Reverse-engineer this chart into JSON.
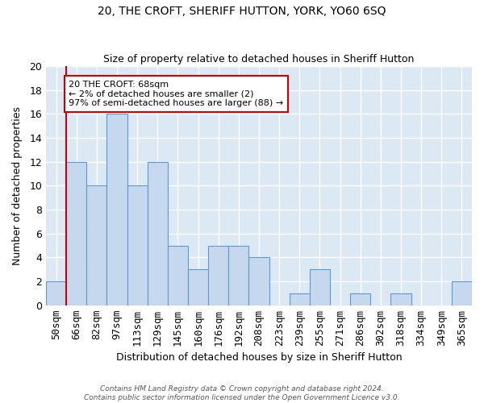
{
  "title": "20, THE CROFT, SHERIFF HUTTON, YORK, YO60 6SQ",
  "subtitle": "Size of property relative to detached houses in Sheriff Hutton",
  "xlabel": "Distribution of detached houses by size in Sheriff Hutton",
  "ylabel": "Number of detached properties",
  "bin_labels": [
    "50sqm",
    "66sqm",
    "82sqm",
    "97sqm",
    "113sqm",
    "129sqm",
    "145sqm",
    "160sqm",
    "176sqm",
    "192sqm",
    "208sqm",
    "223sqm",
    "239sqm",
    "255sqm",
    "271sqm",
    "286sqm",
    "302sqm",
    "318sqm",
    "334sqm",
    "349sqm",
    "365sqm"
  ],
  "bar_values": [
    2,
    12,
    10,
    16,
    10,
    12,
    5,
    3,
    5,
    5,
    4,
    0,
    1,
    3,
    0,
    1,
    0,
    1,
    0,
    0,
    2
  ],
  "bar_color": "#c5d8ed",
  "bar_edge_color": "#5b9bd5",
  "annotation_text": "20 THE CROFT: 68sqm\n← 2% of detached houses are smaller (2)\n97% of semi-detached houses are larger (88) →",
  "annotation_box_color": "#ffffff",
  "annotation_box_edge": "#cc0000",
  "vline_color": "#cc0000",
  "ylim": [
    0,
    20
  ],
  "yticks": [
    0,
    2,
    4,
    6,
    8,
    10,
    12,
    14,
    16,
    18,
    20
  ],
  "bg_color": "#dce9f5",
  "grid_color": "#ffffff",
  "fig_bg_color": "#ffffff",
  "footer": "Contains HM Land Registry data © Crown copyright and database right 2024.\nContains public sector information licensed under the Open Government Licence v3.0."
}
